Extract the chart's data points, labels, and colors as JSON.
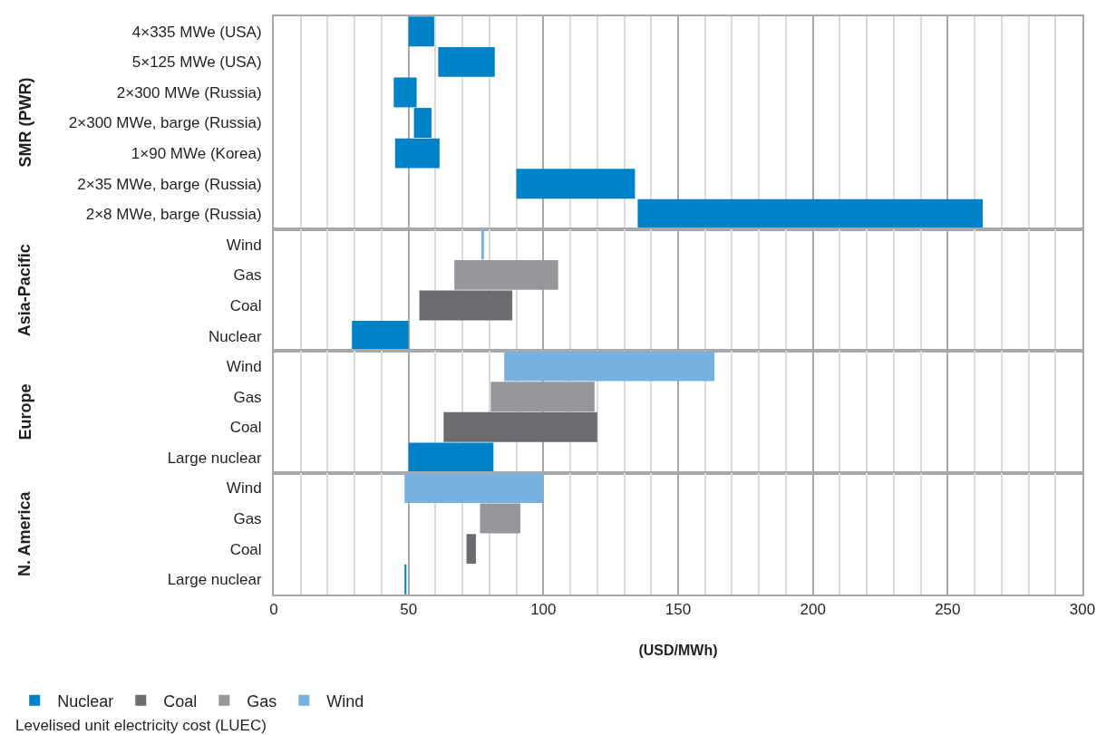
{
  "chart_data": [
    {
      "type": "bar",
      "orientation": "horizontal",
      "ylabel": "SMR (PWR)",
      "categories": [
        "4×335 MWe (USA)",
        "5×125 MWe (USA)",
        "2×300 MWe (Russia)",
        "2×300 MWe, barge (Russia)",
        "1×90 MWe (Korea)",
        "2×35 MWe, barge (Russia)",
        "2×8 MWe, barge (Russia)"
      ],
      "series": [
        {
          "color": "#0082c8",
          "values": [
            9.5,
            21,
            8.5,
            6.5,
            16.5,
            44,
            128
          ],
          "base": [
            50,
            61,
            44.5,
            52,
            45,
            90,
            135
          ]
        }
      ],
      "xlim": [
        0,
        300
      ],
      "xticks": [
        0,
        50,
        100,
        150,
        200,
        250,
        300
      ],
      "grid": "x",
      "tick_labels": "y"
    },
    {
      "type": "bar",
      "orientation": "horizontal",
      "ylabel": "Asia-Pacific",
      "categories": [
        "Wind",
        "Gas",
        "Coal",
        "Nuclear"
      ],
      "series": [
        {
          "color": "#0082c8",
          "values": [
            null,
            null,
            null,
            21
          ],
          "base": [
            null,
            null,
            null,
            29
          ]
        },
        {
          "color": "#6b6c70",
          "values": [
            null,
            null,
            34.5,
            null
          ],
          "base": [
            null,
            null,
            54,
            null
          ]
        },
        {
          "color": "#96979b",
          "values": [
            null,
            38.5,
            null,
            null
          ],
          "base": [
            null,
            67,
            null,
            null
          ]
        },
        {
          "color": "#78b0de",
          "values": [
            1,
            null,
            null,
            null
          ],
          "base": [
            77,
            null,
            null,
            null
          ]
        }
      ],
      "xlim": [
        0,
        300
      ],
      "xticks": [
        0,
        50,
        100,
        150,
        200,
        250,
        300
      ],
      "grid": "x",
      "tick_labels": "y"
    },
    {
      "type": "bar",
      "orientation": "horizontal",
      "ylabel": "Europe",
      "categories": [
        "Wind",
        "Gas",
        "Coal",
        "Large nuclear"
      ],
      "series": [
        {
          "color": "#0082c8",
          "values": [
            null,
            null,
            null,
            31.5
          ],
          "base": [
            null,
            null,
            null,
            50
          ]
        },
        {
          "color": "#6b6c70",
          "values": [
            null,
            null,
            57,
            null
          ],
          "base": [
            null,
            null,
            63,
            null
          ]
        },
        {
          "color": "#96979b",
          "values": [
            null,
            38.5,
            null,
            null
          ],
          "base": [
            null,
            80.5,
            null,
            null
          ]
        },
        {
          "color": "#78b0de",
          "values": [
            78,
            null,
            null,
            null
          ],
          "base": [
            85.5,
            null,
            null,
            null
          ]
        }
      ],
      "xlim": [
        0,
        300
      ],
      "xticks": [
        0,
        50,
        100,
        150,
        200,
        250,
        300
      ],
      "grid": "x",
      "tick_labels": "y"
    },
    {
      "type": "bar",
      "orientation": "horizontal",
      "ylabel": "N. America",
      "categories": [
        "Wind",
        "Gas",
        "Coal",
        "Large nuclear"
      ],
      "series": [
        {
          "name": "Nuclear",
          "color": "#0082c8",
          "values": [
            null,
            null,
            null,
            0.7
          ],
          "base": [
            null,
            null,
            null,
            48.5
          ]
        },
        {
          "name": "Coal",
          "color": "#6b6c70",
          "values": [
            null,
            null,
            3.5,
            null
          ],
          "base": [
            null,
            null,
            71.5,
            null
          ]
        },
        {
          "name": "Gas",
          "color": "#96979b",
          "values": [
            null,
            15,
            null,
            null
          ],
          "base": [
            null,
            76.5,
            null,
            null
          ]
        },
        {
          "name": "Wind",
          "color": "#78b0de",
          "values": [
            51.5,
            null,
            null,
            null
          ],
          "base": [
            48.5,
            null,
            null,
            null
          ]
        }
      ],
      "xlim": [
        0,
        300
      ],
      "xticks": [
        0,
        50,
        100,
        150,
        200,
        250,
        300
      ],
      "grid": "x",
      "xlabel": "(USD/MWh)",
      "legend": "bottom left",
      "annotations": [
        "Levelised unit electricity cost (LUEC)"
      ]
    }
  ]
}
